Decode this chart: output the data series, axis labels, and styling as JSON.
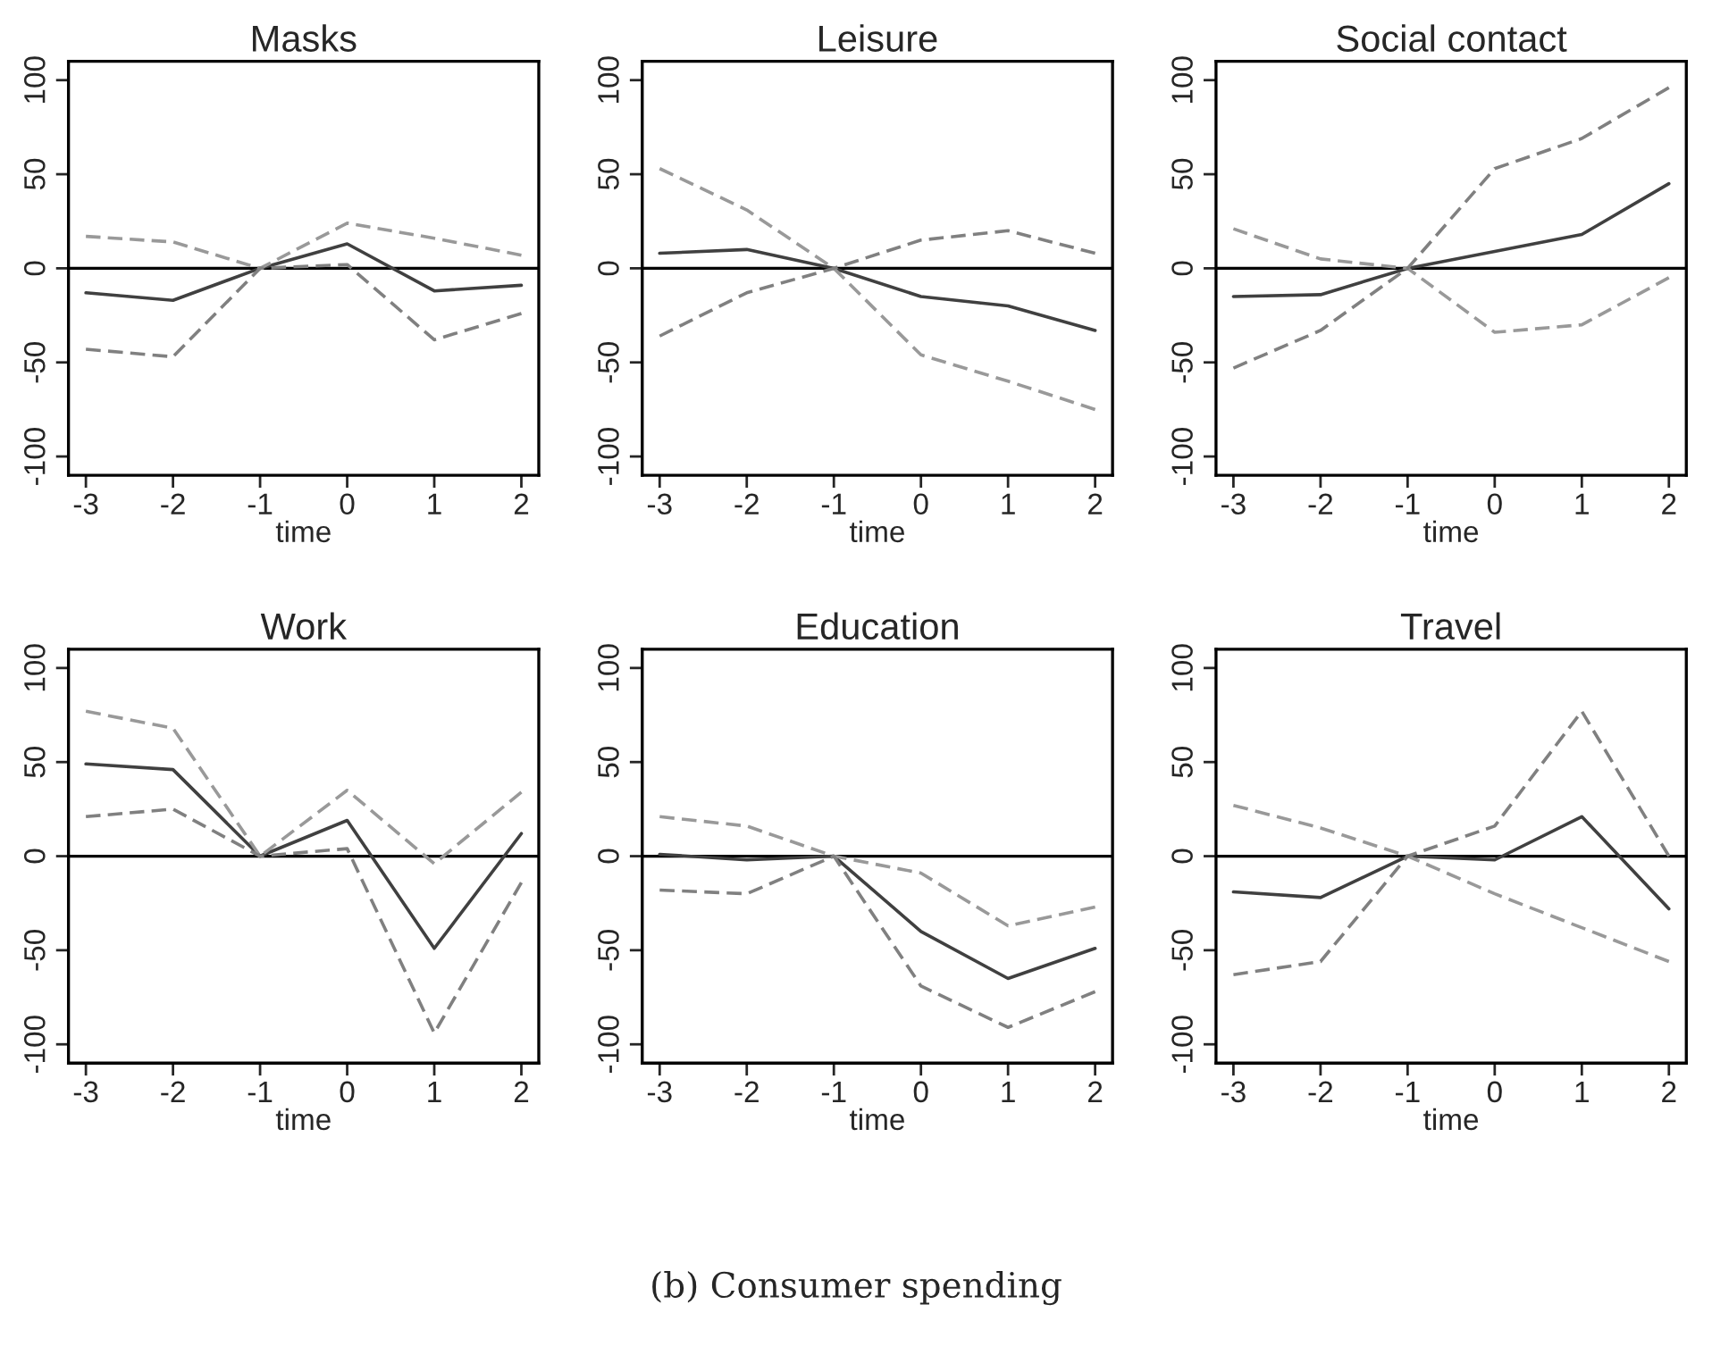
{
  "chart_data": [
    {
      "type": "line",
      "title": "Masks",
      "xlabel": "time",
      "x": [
        -3,
        -2,
        -1,
        0,
        1,
        2
      ],
      "xlim": [
        -3.2,
        2.2
      ],
      "xticks": [
        -3,
        -2,
        -1,
        0,
        1,
        2
      ],
      "ylim": [
        -110,
        110
      ],
      "yticks": [
        -100,
        -50,
        0,
        50,
        100
      ],
      "grid": false,
      "legend": false,
      "ref_lines": [
        {
          "axis": "y",
          "value": 0,
          "color": "#000000"
        }
      ],
      "series": [
        {
          "color": "#404040",
          "line_style": "solid",
          "values": [
            -13,
            -17,
            0,
            13,
            -12,
            -9
          ]
        },
        {
          "color": "#999999",
          "line_style": "dashed",
          "values": [
            17,
            14,
            0,
            24,
            16,
            7
          ]
        },
        {
          "color": "#808080",
          "line_style": "dashed",
          "values": [
            -43,
            -47,
            0,
            2,
            -38,
            -24
          ]
        }
      ]
    },
    {
      "type": "line",
      "title": "Leisure",
      "xlabel": "time",
      "x": [
        -3,
        -2,
        -1,
        0,
        1,
        2
      ],
      "xlim": [
        -3.2,
        2.2
      ],
      "xticks": [
        -3,
        -2,
        -1,
        0,
        1,
        2
      ],
      "ylim": [
        -110,
        110
      ],
      "yticks": [
        -100,
        -50,
        0,
        50,
        100
      ],
      "grid": false,
      "legend": false,
      "ref_lines": [
        {
          "axis": "y",
          "value": 0,
          "color": "#000000"
        }
      ],
      "series": [
        {
          "color": "#404040",
          "line_style": "solid",
          "values": [
            8,
            10,
            0,
            -15,
            -20,
            -33
          ]
        },
        {
          "color": "#999999",
          "line_style": "dashed",
          "values": [
            53,
            31,
            0,
            -46,
            -60,
            -75
          ]
        },
        {
          "color": "#808080",
          "line_style": "dashed",
          "values": [
            -36,
            -13,
            0,
            15,
            20,
            8
          ]
        }
      ]
    },
    {
      "type": "line",
      "title": "Social contact",
      "xlabel": "time",
      "x": [
        -3,
        -2,
        -1,
        0,
        1,
        2
      ],
      "xlim": [
        -3.2,
        2.2
      ],
      "xticks": [
        -3,
        -2,
        -1,
        0,
        1,
        2
      ],
      "ylim": [
        -110,
        110
      ],
      "yticks": [
        -100,
        -50,
        0,
        50,
        100
      ],
      "grid": false,
      "legend": false,
      "ref_lines": [
        {
          "axis": "y",
          "value": 0,
          "color": "#000000"
        }
      ],
      "series": [
        {
          "color": "#404040",
          "line_style": "solid",
          "values": [
            -15,
            -14,
            0,
            9,
            18,
            45
          ]
        },
        {
          "color": "#999999",
          "line_style": "dashed",
          "values": [
            21,
            5,
            0,
            -34,
            -30,
            -5
          ]
        },
        {
          "color": "#808080",
          "line_style": "dashed",
          "values": [
            -53,
            -33,
            0,
            53,
            69,
            96
          ]
        }
      ]
    },
    {
      "type": "line",
      "title": "Work",
      "xlabel": "time",
      "x": [
        -3,
        -2,
        -1,
        0,
        1,
        2
      ],
      "xlim": [
        -3.2,
        2.2
      ],
      "xticks": [
        -3,
        -2,
        -1,
        0,
        1,
        2
      ],
      "ylim": [
        -110,
        110
      ],
      "yticks": [
        -100,
        -50,
        0,
        50,
        100
      ],
      "grid": false,
      "legend": false,
      "ref_lines": [
        {
          "axis": "y",
          "value": 0,
          "color": "#000000"
        }
      ],
      "series": [
        {
          "color": "#404040",
          "line_style": "solid",
          "values": [
            49,
            46,
            0,
            19,
            -49,
            12
          ]
        },
        {
          "color": "#999999",
          "line_style": "dashed",
          "values": [
            77,
            68,
            0,
            35,
            -4,
            34
          ]
        },
        {
          "color": "#808080",
          "line_style": "dashed",
          "values": [
            21,
            25,
            0,
            4,
            -94,
            -14
          ]
        }
      ]
    },
    {
      "type": "line",
      "title": "Education",
      "xlabel": "time",
      "x": [
        -3,
        -2,
        -1,
        0,
        1,
        2
      ],
      "xlim": [
        -3.2,
        2.2
      ],
      "xticks": [
        -3,
        -2,
        -1,
        0,
        1,
        2
      ],
      "ylim": [
        -110,
        110
      ],
      "yticks": [
        -100,
        -50,
        0,
        50,
        100
      ],
      "grid": false,
      "legend": false,
      "ref_lines": [
        {
          "axis": "y",
          "value": 0,
          "color": "#000000"
        }
      ],
      "series": [
        {
          "color": "#404040",
          "line_style": "solid",
          "values": [
            1,
            -2,
            0,
            -40,
            -65,
            -49
          ]
        },
        {
          "color": "#999999",
          "line_style": "dashed",
          "values": [
            21,
            16,
            0,
            -9,
            -37,
            -27
          ]
        },
        {
          "color": "#808080",
          "line_style": "dashed",
          "values": [
            -18,
            -20,
            0,
            -69,
            -91,
            -72
          ]
        }
      ]
    },
    {
      "type": "line",
      "title": "Travel",
      "xlabel": "time",
      "x": [
        -3,
        -2,
        -1,
        0,
        1,
        2
      ],
      "xlim": [
        -3.2,
        2.2
      ],
      "xticks": [
        -3,
        -2,
        -1,
        0,
        1,
        2
      ],
      "ylim": [
        -110,
        110
      ],
      "yticks": [
        -100,
        -50,
        0,
        50,
        100
      ],
      "grid": false,
      "legend": false,
      "ref_lines": [
        {
          "axis": "y",
          "value": 0,
          "color": "#000000"
        }
      ],
      "annotations": [
        "(b) Consumer spending"
      ],
      "series": [
        {
          "color": "#404040",
          "line_style": "solid",
          "values": [
            -19,
            -22,
            0,
            -2,
            21,
            -28
          ]
        },
        {
          "color": "#999999",
          "line_style": "dashed",
          "values": [
            27,
            15,
            0,
            -20,
            -38,
            -56
          ]
        },
        {
          "color": "#808080",
          "line_style": "dashed",
          "values": [
            -63,
            -56,
            0,
            16,
            77,
            0
          ]
        }
      ]
    }
  ]
}
